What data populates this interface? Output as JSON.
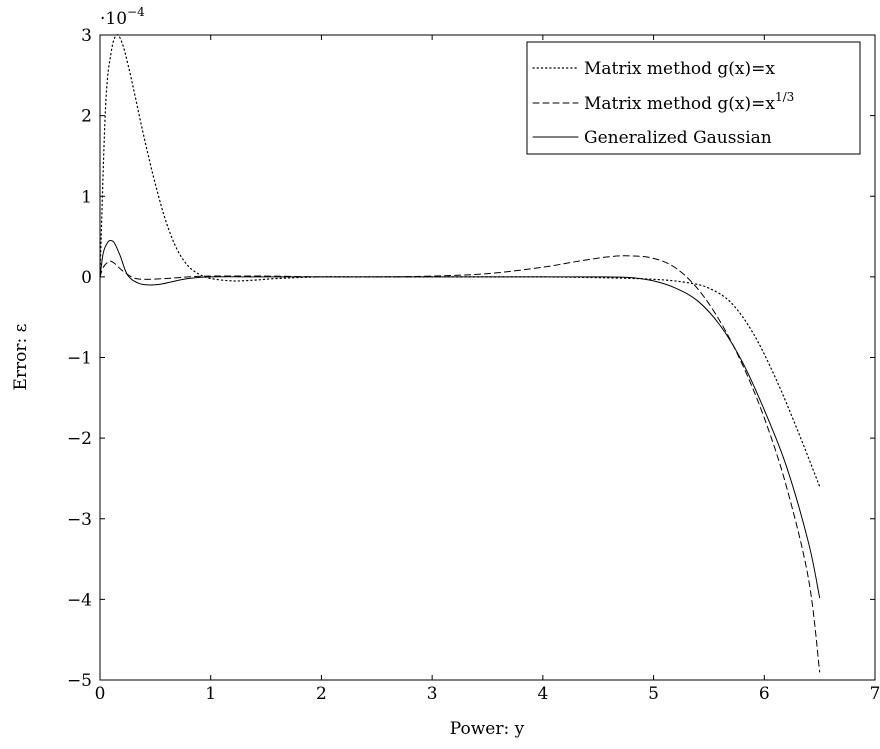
{
  "chart_data": {
    "type": "line",
    "xlabel": "Power: y",
    "ylabel": "Error: ε",
    "y_scale_factor": "·10",
    "y_scale_exponent": "−4",
    "xlim": [
      0,
      7
    ],
    "ylim": [
      -5,
      3
    ],
    "x_ticks": [
      0,
      1,
      2,
      3,
      4,
      5,
      6,
      7
    ],
    "x_tick_labels": [
      "0",
      "1",
      "2",
      "3",
      "4",
      "5",
      "6",
      "7"
    ],
    "y_ticks": [
      -5,
      -4,
      -3,
      -2,
      -1,
      0,
      1,
      2,
      3
    ],
    "y_tick_labels": [
      "−5",
      "−4",
      "−3",
      "−2",
      "−1",
      "0",
      "1",
      "2",
      "3"
    ],
    "grid": false,
    "legend_position": "top-right",
    "series": [
      {
        "name": "Matrix method g(x)=x",
        "legend_base": "Matrix method g(x)=x",
        "legend_sup": "",
        "style": "dotted",
        "color": "#000000",
        "x": [
          0,
          0.05,
          0.1,
          0.15,
          0.2,
          0.25,
          0.3,
          0.4,
          0.5,
          0.6,
          0.7,
          0.8,
          0.9,
          1.0,
          1.2,
          1.4,
          1.6,
          2,
          2.5,
          3,
          3.5,
          4,
          4.5,
          5,
          5.3,
          5.5,
          5.7,
          5.9,
          6.1,
          6.3,
          6.5
        ],
        "y": [
          0,
          2.1,
          2.78,
          3.0,
          2.9,
          2.65,
          2.35,
          1.72,
          1.15,
          0.67,
          0.33,
          0.13,
          0.03,
          -0.02,
          -0.05,
          -0.04,
          -0.02,
          0,
          0,
          0,
          0,
          0,
          -0.01,
          -0.03,
          -0.07,
          -0.14,
          -0.32,
          -0.7,
          -1.25,
          -1.9,
          -2.6
        ]
      },
      {
        "name": "Matrix method g(x)=x^{1/3}",
        "legend_base": "Matrix method g(x)=x",
        "legend_sup": "1/3",
        "style": "dashed",
        "color": "#000000",
        "x": [
          0,
          0.03,
          0.08,
          0.12,
          0.2,
          0.3,
          0.4,
          0.6,
          0.8,
          1.0,
          1.5,
          2,
          2.5,
          3,
          3.5,
          4,
          4.3,
          4.6,
          4.8,
          5.0,
          5.2,
          5.4,
          5.6,
          5.8,
          6.0,
          6.2,
          6.4,
          6.5
        ],
        "y": [
          0,
          0.12,
          0.19,
          0.18,
          0.08,
          -0.01,
          -0.03,
          -0.02,
          0.0,
          0.01,
          0.01,
          0,
          0,
          0.01,
          0.04,
          0.12,
          0.19,
          0.25,
          0.26,
          0.23,
          0.11,
          -0.15,
          -0.55,
          -1.08,
          -1.75,
          -2.6,
          -3.75,
          -4.9
        ]
      },
      {
        "name": "Generalized Gaussian",
        "legend_base": "Generalized Gaussian",
        "legend_sup": "",
        "style": "solid",
        "color": "#000000",
        "x": [
          0,
          0.03,
          0.07,
          0.1,
          0.13,
          0.18,
          0.25,
          0.35,
          0.45,
          0.55,
          0.65,
          0.8,
          1.0,
          1.5,
          2,
          3,
          4,
          4.5,
          4.8,
          5.0,
          5.2,
          5.4,
          5.6,
          5.8,
          6.0,
          6.2,
          6.4,
          6.5
        ],
        "y": [
          0,
          0.3,
          0.43,
          0.45,
          0.42,
          0.27,
          0.02,
          -0.08,
          -0.1,
          -0.09,
          -0.06,
          -0.02,
          0,
          0,
          0,
          0,
          0,
          0,
          -0.01,
          -0.05,
          -0.14,
          -0.3,
          -0.6,
          -1.05,
          -1.65,
          -2.35,
          -3.3,
          -3.98
        ]
      }
    ]
  }
}
